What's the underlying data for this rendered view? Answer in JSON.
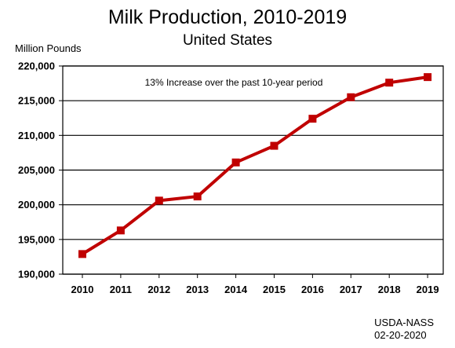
{
  "chart_data": {
    "type": "line",
    "title": "Milk Production, 2010-2019",
    "subtitle": "United States",
    "ylabel": "Million Pounds",
    "xlabel": "",
    "ylim": [
      190000,
      220000
    ],
    "y_ticks": [
      190000,
      195000,
      200000,
      205000,
      210000,
      215000,
      220000
    ],
    "y_tick_labels": [
      "190,000",
      "195,000",
      "200,000",
      "205,000",
      "210,000",
      "215,000",
      "220,000"
    ],
    "x": [
      "2010",
      "2011",
      "2012",
      "2013",
      "2014",
      "2015",
      "2016",
      "2017",
      "2018",
      "2019"
    ],
    "series": [
      {
        "values": [
          192900,
          196300,
          200600,
          201200,
          206100,
          208500,
          212400,
          215500,
          217600,
          218400
        ],
        "color": "#c00000"
      }
    ],
    "grid": "horizontal",
    "annotation": "13% Increase over the past 10-year period"
  },
  "footer": {
    "source": "USDA-NASS",
    "date": "02-20-2020"
  }
}
